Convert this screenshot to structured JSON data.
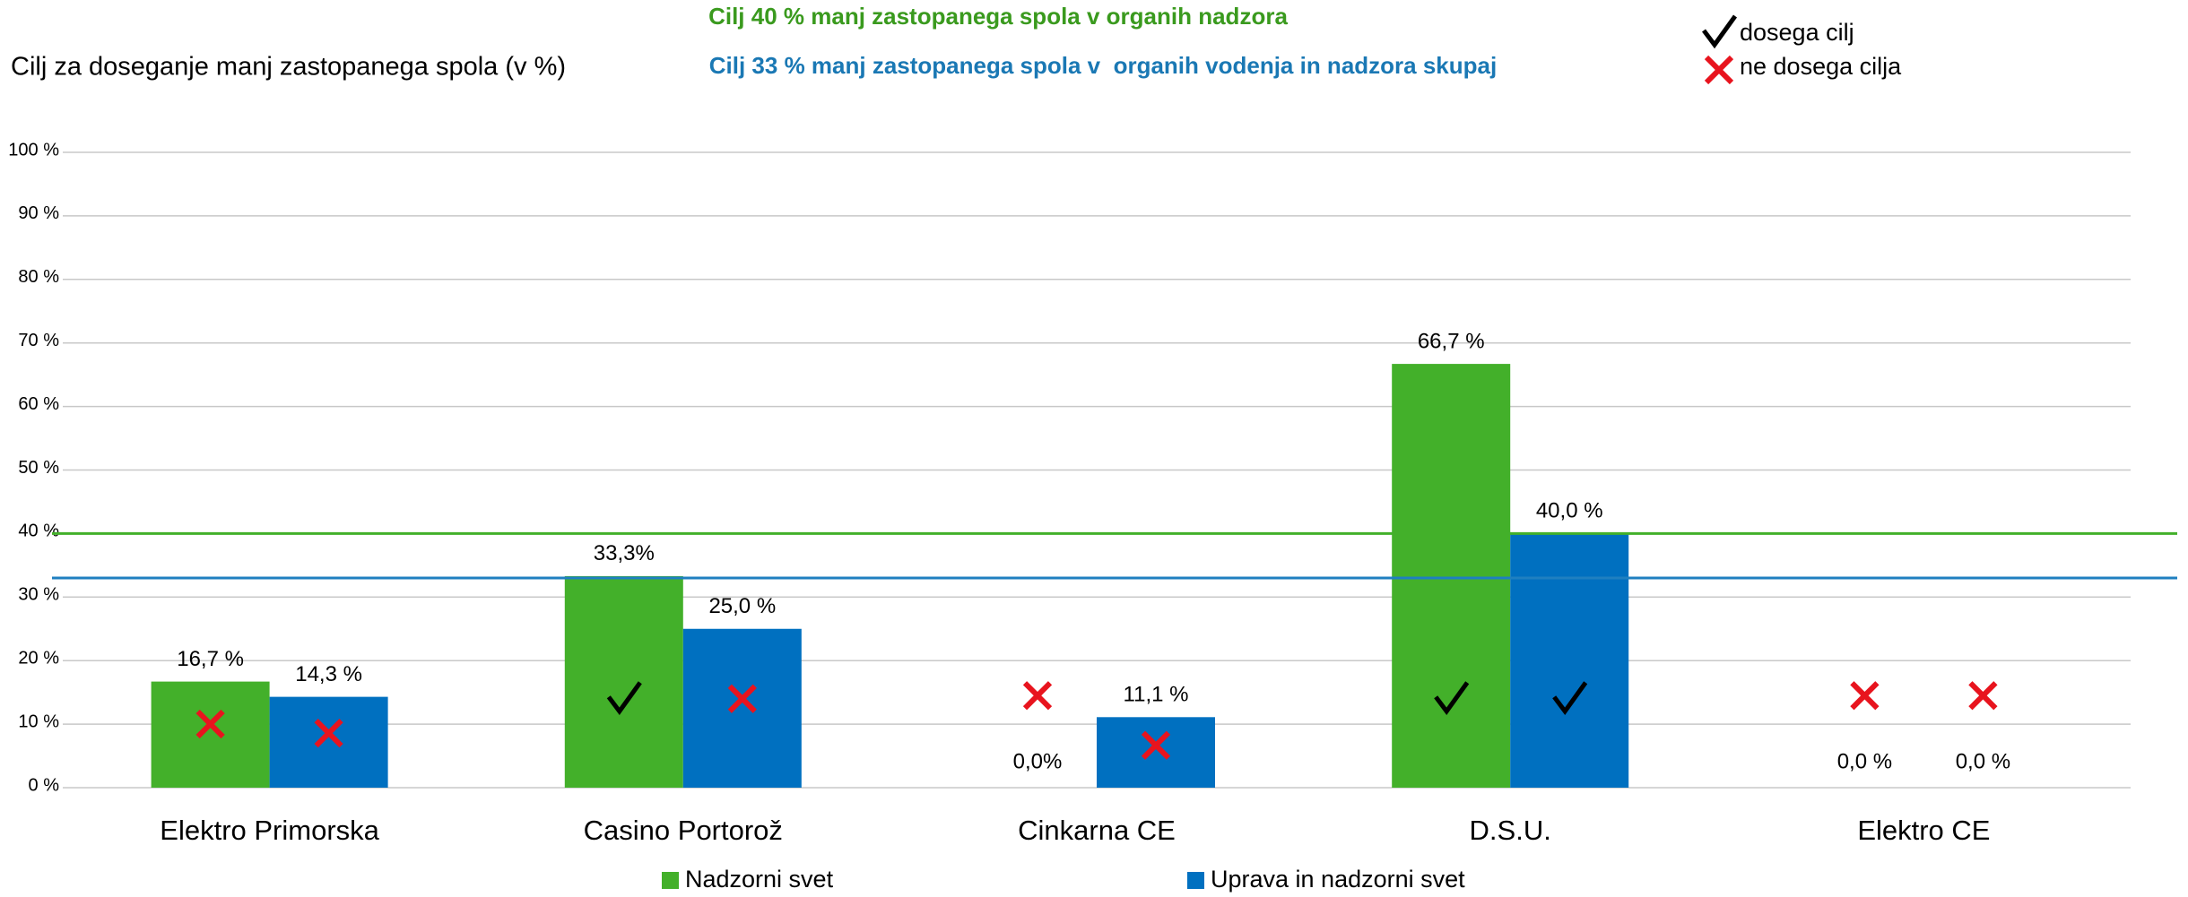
{
  "chart_data": {
    "type": "bar",
    "y_label": "Cilj za doseganje manj zastopanega spola (v %)",
    "categories": [
      "Elektro Primorska",
      "Casino Portorož",
      "Cinkarna CE",
      "D.S.U.",
      "Elektro CE"
    ],
    "series": [
      {
        "name": "Nadzorni svet",
        "color": "#43b02a",
        "values": [
          16.7,
          33.3,
          0,
          66.7,
          0
        ],
        "value_labels": [
          "16,7 %",
          "33,3%",
          "0,0%",
          "66,7 %",
          "0,0 %"
        ],
        "achieved": [
          false,
          true,
          false,
          true,
          false
        ]
      },
      {
        "name": "Uprava in nadzorni svet",
        "color": "#0070c0",
        "values": [
          14.3,
          25.0,
          11.1,
          40.0,
          0.0
        ],
        "value_labels": [
          "14,3 %",
          "25,0 %",
          "11,1 %",
          "40,0 %",
          "0,0 %"
        ],
        "achieved": [
          false,
          false,
          false,
          true,
          false
        ]
      }
    ],
    "reference_lines": [
      {
        "value": 40,
        "color": "#43b02a",
        "label": "Cilj 40 % manj zastopanega spola v organih nadzora",
        "label_color": "#3a9a1e"
      },
      {
        "value": 33,
        "color": "#1f7fc0",
        "label": "Cilj 33 % manj zastopanega spola v  organih vodenja in nadzora skupaj",
        "label_color": "#1a78b4"
      }
    ],
    "marker_legend": {
      "achieved": "dosega cilj",
      "not_achieved": "ne dosega cilja"
    },
    "ylim": [
      0,
      100
    ],
    "yticks": [
      {
        "value": 0,
        "label": "0 %"
      },
      {
        "value": 10,
        "label": "10 %"
      },
      {
        "value": 20,
        "label": "20 %"
      },
      {
        "value": 30,
        "label": "30 %"
      },
      {
        "value": 40,
        "label": "40 %"
      },
      {
        "value": 50,
        "label": "50 %"
      },
      {
        "value": 60,
        "label": "60 %"
      },
      {
        "value": 70,
        "label": "70 %"
      },
      {
        "value": 80,
        "label": "80 %"
      },
      {
        "value": 90,
        "label": "90 %"
      },
      {
        "value": 100,
        "label": "100 %"
      }
    ],
    "grid": true
  }
}
